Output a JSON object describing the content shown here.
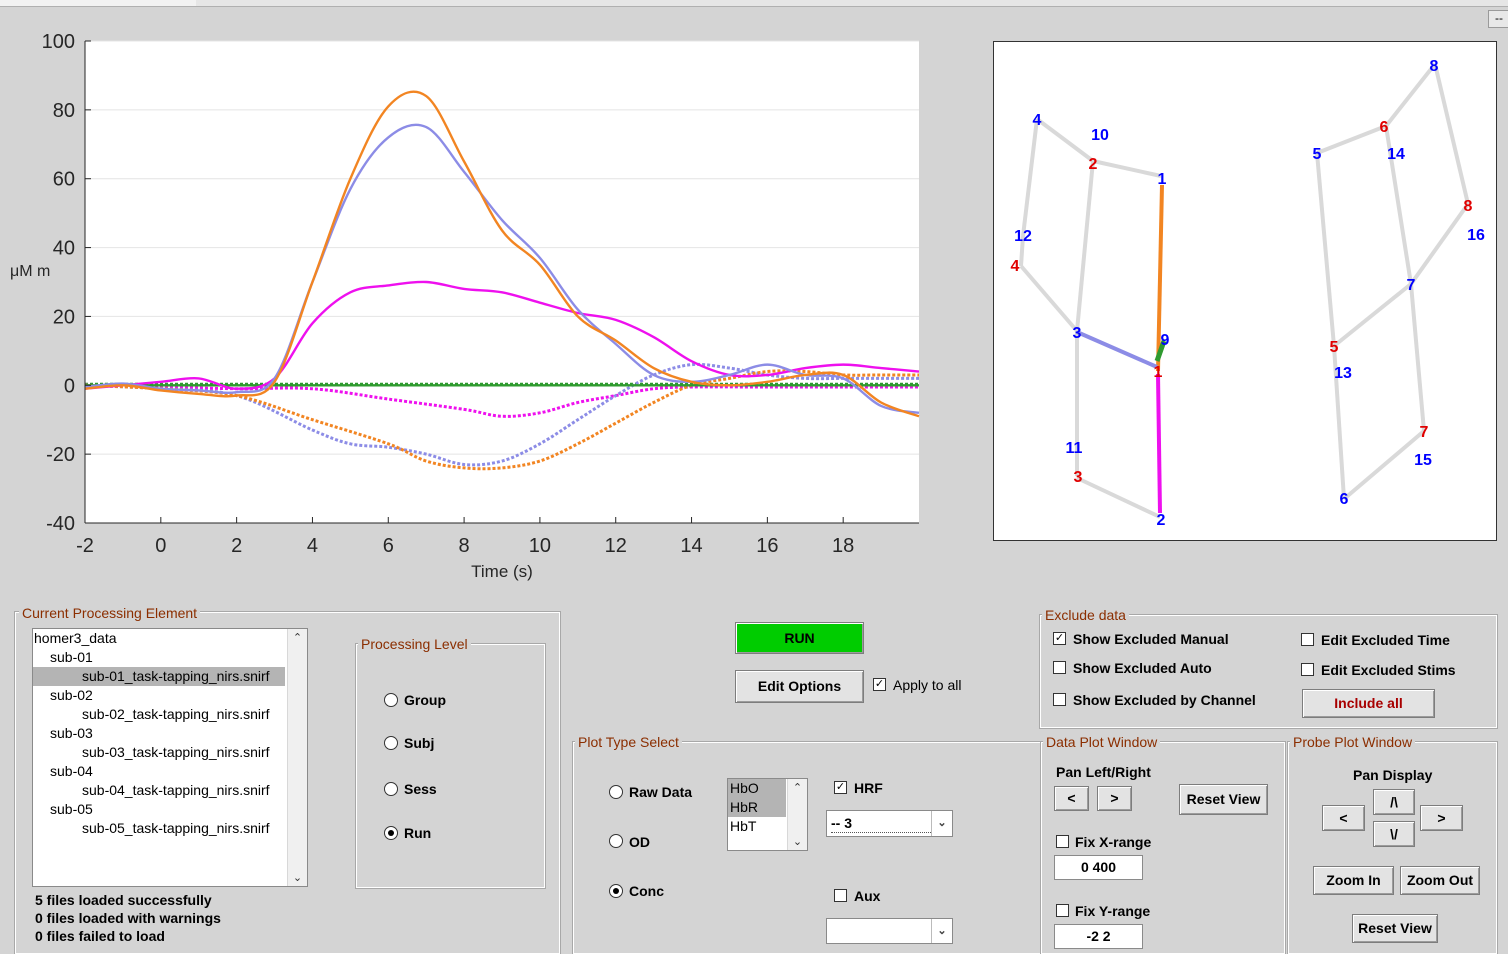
{
  "window": {
    "corner_button": "--"
  },
  "chart_data": {
    "type": "line",
    "xlabel": "Time (s)",
    "ylabel": "μM m",
    "xlim": [
      -2,
      20
    ],
    "ylim": [
      -40,
      100
    ],
    "xticks": [
      -2,
      0,
      2,
      4,
      6,
      8,
      10,
      12,
      14,
      16,
      18
    ],
    "yticks": [
      100,
      80,
      60,
      40,
      20,
      0,
      -20,
      -40
    ],
    "grid": "horizontal",
    "series": [
      {
        "color": "#f28522",
        "dash": false,
        "points": [
          [
            -2,
            -1
          ],
          [
            -1,
            0
          ],
          [
            0,
            -1.5
          ],
          [
            1,
            -2.5
          ],
          [
            2,
            -3
          ],
          [
            3,
            1
          ],
          [
            4,
            30
          ],
          [
            5,
            60
          ],
          [
            6,
            81
          ],
          [
            7,
            84
          ],
          [
            8,
            65
          ],
          [
            9,
            45
          ],
          [
            10,
            35
          ],
          [
            11,
            20
          ],
          [
            12,
            13
          ],
          [
            13,
            5
          ],
          [
            14,
            1
          ],
          [
            15,
            0
          ],
          [
            16,
            1
          ],
          [
            17,
            3
          ],
          [
            18,
            3
          ],
          [
            19,
            -5
          ],
          [
            20,
            -9
          ]
        ]
      },
      {
        "color": "#8c8ce6",
        "dash": false,
        "points": [
          [
            -2,
            -0.5
          ],
          [
            -1,
            0.5
          ],
          [
            0,
            -1
          ],
          [
            1,
            -1.5
          ],
          [
            2,
            -2
          ],
          [
            3,
            2
          ],
          [
            4,
            30
          ],
          [
            5,
            57
          ],
          [
            6,
            72
          ],
          [
            7,
            75
          ],
          [
            8,
            62
          ],
          [
            9,
            48
          ],
          [
            10,
            37
          ],
          [
            11,
            22
          ],
          [
            12,
            12
          ],
          [
            13,
            3
          ],
          [
            14,
            1
          ],
          [
            15,
            3
          ],
          [
            16,
            6
          ],
          [
            17,
            3
          ],
          [
            18,
            2
          ],
          [
            19,
            -6
          ],
          [
            20,
            -8
          ]
        ]
      },
      {
        "color": "#ee10ee",
        "dash": false,
        "points": [
          [
            -2,
            -1
          ],
          [
            -1,
            0
          ],
          [
            0,
            1
          ],
          [
            1,
            2
          ],
          [
            2,
            -1
          ],
          [
            3,
            2
          ],
          [
            4,
            18
          ],
          [
            5,
            27
          ],
          [
            6,
            29
          ],
          [
            7,
            30
          ],
          [
            8,
            28
          ],
          [
            9,
            27
          ],
          [
            10,
            24
          ],
          [
            11,
            21
          ],
          [
            12,
            19
          ],
          [
            13,
            14
          ],
          [
            14,
            7
          ],
          [
            15,
            3
          ],
          [
            16,
            3
          ],
          [
            17,
            5
          ],
          [
            18,
            6
          ],
          [
            19,
            5
          ],
          [
            20,
            4
          ]
        ]
      },
      {
        "color": "#2f9a2f",
        "dash": false,
        "points": [
          [
            -2,
            0
          ],
          [
            20,
            0
          ]
        ]
      },
      {
        "color": "#f28522",
        "dash": true,
        "points": [
          [
            -2,
            0
          ],
          [
            0,
            -1
          ],
          [
            2,
            -3
          ],
          [
            4,
            -10
          ],
          [
            6,
            -17
          ],
          [
            7,
            -22
          ],
          [
            8,
            -24
          ],
          [
            9,
            -24
          ],
          [
            10,
            -22
          ],
          [
            11,
            -17
          ],
          [
            12,
            -11
          ],
          [
            13,
            -5
          ],
          [
            14,
            0
          ],
          [
            15,
            2
          ],
          [
            16,
            4
          ],
          [
            17,
            4
          ],
          [
            18,
            3
          ],
          [
            19,
            3
          ],
          [
            20,
            3
          ]
        ]
      },
      {
        "color": "#8c8ce6",
        "dash": true,
        "points": [
          [
            -2,
            0
          ],
          [
            0,
            -1
          ],
          [
            2,
            -3
          ],
          [
            4,
            -13
          ],
          [
            5,
            -17
          ],
          [
            6,
            -18
          ],
          [
            7,
            -20
          ],
          [
            8,
            -23
          ],
          [
            9,
            -22
          ],
          [
            10,
            -17
          ],
          [
            11,
            -10
          ],
          [
            12,
            -3
          ],
          [
            13,
            3
          ],
          [
            14,
            6
          ],
          [
            15,
            5
          ],
          [
            16,
            3
          ],
          [
            17,
            2
          ],
          [
            18,
            2
          ],
          [
            19,
            2
          ],
          [
            20,
            2
          ]
        ]
      },
      {
        "color": "#ee10ee",
        "dash": true,
        "points": [
          [
            -2,
            0
          ],
          [
            0,
            -0.5
          ],
          [
            2,
            -1
          ],
          [
            4,
            -1
          ],
          [
            6,
            -4
          ],
          [
            8,
            -7
          ],
          [
            9,
            -9
          ],
          [
            10,
            -8
          ],
          [
            11,
            -5
          ],
          [
            12,
            -3
          ],
          [
            13,
            -1
          ],
          [
            14,
            -0.5
          ],
          [
            16,
            -0.5
          ],
          [
            18,
            -0.5
          ],
          [
            20,
            -0.5
          ]
        ]
      },
      {
        "color": "#2f9a2f",
        "dash": true,
        "points": [
          [
            -2,
            0.3
          ],
          [
            20,
            0.3
          ]
        ]
      }
    ]
  },
  "probe": {
    "nodes": [
      {
        "label": "4",
        "color": "#0000ff"
      },
      {
        "label": "10",
        "color": "#0000ff"
      },
      {
        "label": "2",
        "color": "#e00000"
      },
      {
        "label": "1",
        "color": "#0000ff"
      },
      {
        "label": "12",
        "color": "#0000ff"
      },
      {
        "label": "4",
        "color": "#e00000"
      },
      {
        "label": "3",
        "color": "#0000ff"
      },
      {
        "label": "9",
        "color": "#0000ff"
      },
      {
        "label": "1",
        "color": "#e00000"
      },
      {
        "label": "11",
        "color": "#0000ff"
      },
      {
        "label": "3",
        "color": "#e00000"
      },
      {
        "label": "2",
        "color": "#0000ff"
      },
      {
        "label": "8",
        "color": "#0000ff"
      },
      {
        "label": "6",
        "color": "#e00000"
      },
      {
        "label": "14",
        "color": "#0000ff"
      },
      {
        "label": "5",
        "color": "#0000ff"
      },
      {
        "label": "8",
        "color": "#e00000"
      },
      {
        "label": "16",
        "color": "#0000ff"
      },
      {
        "label": "7",
        "color": "#0000ff"
      },
      {
        "label": "5",
        "color": "#e00000"
      },
      {
        "label": "13",
        "color": "#0000ff"
      },
      {
        "label": "7",
        "color": "#e00000"
      },
      {
        "label": "15",
        "color": "#0000ff"
      },
      {
        "label": "6",
        "color": "#0000ff"
      }
    ]
  },
  "current_processing": {
    "title": "Current Processing Element",
    "tree": [
      {
        "label": "homer3_data",
        "selected": false
      },
      {
        "label": "sub-01",
        "selected": false
      },
      {
        "label": "sub-01_task-tapping_nirs.snirf",
        "selected": true
      },
      {
        "label": "sub-02",
        "selected": false
      },
      {
        "label": "sub-02_task-tapping_nirs.snirf",
        "selected": false
      },
      {
        "label": "sub-03",
        "selected": false
      },
      {
        "label": "sub-03_task-tapping_nirs.snirf",
        "selected": false
      },
      {
        "label": "sub-04",
        "selected": false
      },
      {
        "label": "sub-04_task-tapping_nirs.snirf",
        "selected": false
      },
      {
        "label": "sub-05",
        "selected": false
      },
      {
        "label": "sub-05_task-tapping_nirs.snirf",
        "selected": false
      }
    ],
    "status": [
      "5 files loaded successfully",
      "0 files loaded with warnings",
      "0 files failed to load"
    ]
  },
  "processing_level": {
    "title": "Processing Level",
    "options": [
      "Group",
      "Subj",
      "Sess",
      "Run"
    ],
    "selected": "Run"
  },
  "run": {
    "label": "RUN",
    "color": "#00cc00",
    "edit_options": "Edit Options",
    "apply_to_all": "Apply to all",
    "apply_checked": true
  },
  "plot_type": {
    "title": "Plot Type Select",
    "options": [
      "Raw Data",
      "OD",
      "Conc"
    ],
    "selected": "Conc",
    "hb_list": [
      "HbO",
      "HbR",
      "HbT"
    ],
    "hb_selected": [
      "HbO",
      "HbR"
    ],
    "hrf_label": "HRF",
    "hrf_checked": true,
    "hrf_select": "-- 3",
    "aux_label": "Aux",
    "aux_checked": false,
    "aux_select": ""
  },
  "exclude": {
    "title": "Exclude data",
    "show_manual": "Show Excluded Manual",
    "show_manual_checked": true,
    "show_auto": "Show Excluded Auto",
    "show_channel": "Show Excluded by Channel",
    "edit_time": "Edit Excluded Time",
    "edit_stims": "Edit Excluded Stims",
    "include_all": "Include all"
  },
  "data_plot_window": {
    "title": "Data Plot Window",
    "pan_label": "Pan Left/Right",
    "left": "<",
    "right": ">",
    "reset": "Reset View",
    "fix_x": "Fix X-range",
    "x_range": "0 400",
    "fix_y": "Fix Y-range",
    "y_range": "-2 2"
  },
  "probe_plot_window": {
    "title": "Probe Plot Window",
    "pan_label": "Pan Display",
    "up": "/\\",
    "down": "\\/",
    "left": "<",
    "right": ">",
    "zoom_in": "Zoom In",
    "zoom_out": "Zoom Out",
    "reset": "Reset View"
  }
}
